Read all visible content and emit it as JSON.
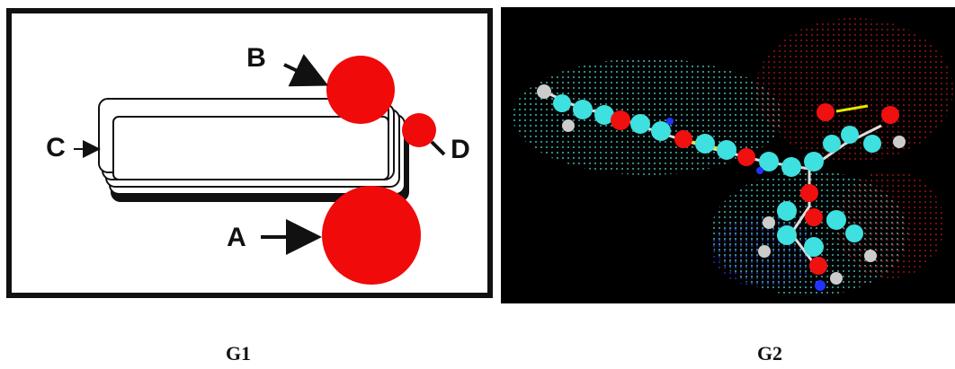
{
  "panels": [
    {
      "caption": "G1",
      "labels": {
        "a": "A",
        "b": "B",
        "c": "C",
        "d": "D"
      }
    },
    {
      "caption": "G2"
    }
  ]
}
